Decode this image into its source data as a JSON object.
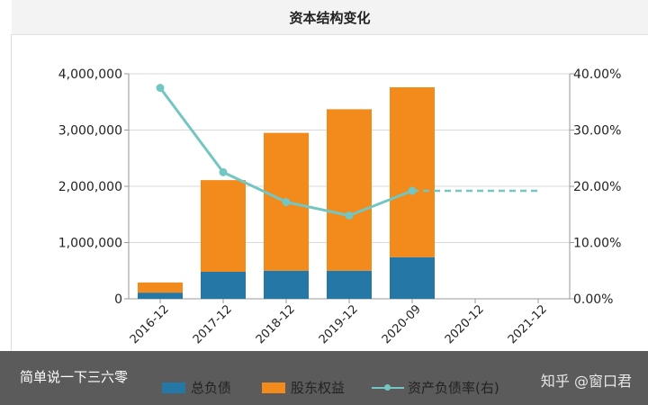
{
  "header": {
    "title": "资本结构变化"
  },
  "caption": {
    "text": "简单说一下三六零"
  },
  "watermark": {
    "text": "知乎 @窗口君"
  },
  "colors": {
    "debt": "#2577a6",
    "equity": "#f28a1c",
    "ratio_line": "#74c6c2",
    "axis": "#999999",
    "grid": "#d9d9d9",
    "text": "#222222"
  },
  "legend": [
    {
      "key": "debt",
      "label": "总负债",
      "marker": "box"
    },
    {
      "key": "equity",
      "label": "股东权益",
      "marker": "box"
    },
    {
      "key": "ratio",
      "label": "资产负债率(右)",
      "marker": "line"
    }
  ],
  "chart_data": {
    "type": "bar",
    "stacked": true,
    "categories": [
      "2016-12",
      "2017-12",
      "2018-12",
      "2019-12",
      "2020-09",
      "2020-12",
      "2021-12"
    ],
    "y_left": {
      "min": 0,
      "max": 4000000,
      "ticks": [
        0,
        1000000,
        2000000,
        3000000,
        4000000
      ],
      "tick_labels": [
        "0",
        "1,000,000",
        "2,000,000",
        "3,000,000",
        "4,000,000"
      ]
    },
    "y_right": {
      "min": 0,
      "max": 40,
      "ticks": [
        0,
        10,
        20,
        30,
        40
      ],
      "tick_labels": [
        "0.00%",
        "10.00%",
        "20.00%",
        "30.00%",
        "40.00%"
      ]
    },
    "grid": true,
    "legend_position": "bottom",
    "series": [
      {
        "name": "总负债",
        "kind": "bar",
        "color_key": "debt",
        "values": [
          110000,
          480000,
          500000,
          500000,
          740000,
          null,
          null
        ]
      },
      {
        "name": "股东权益",
        "kind": "bar",
        "color_key": "equity",
        "values": [
          180000,
          1630000,
          2450000,
          2870000,
          3020000,
          null,
          null
        ]
      },
      {
        "name": "资产负债率(右)",
        "kind": "line",
        "axis": "right",
        "color_key": "ratio_line",
        "values": [
          37.5,
          22.5,
          17.2,
          14.8,
          19.2,
          19.2,
          19.2
        ],
        "dashed_from_index": 4
      }
    ]
  }
}
